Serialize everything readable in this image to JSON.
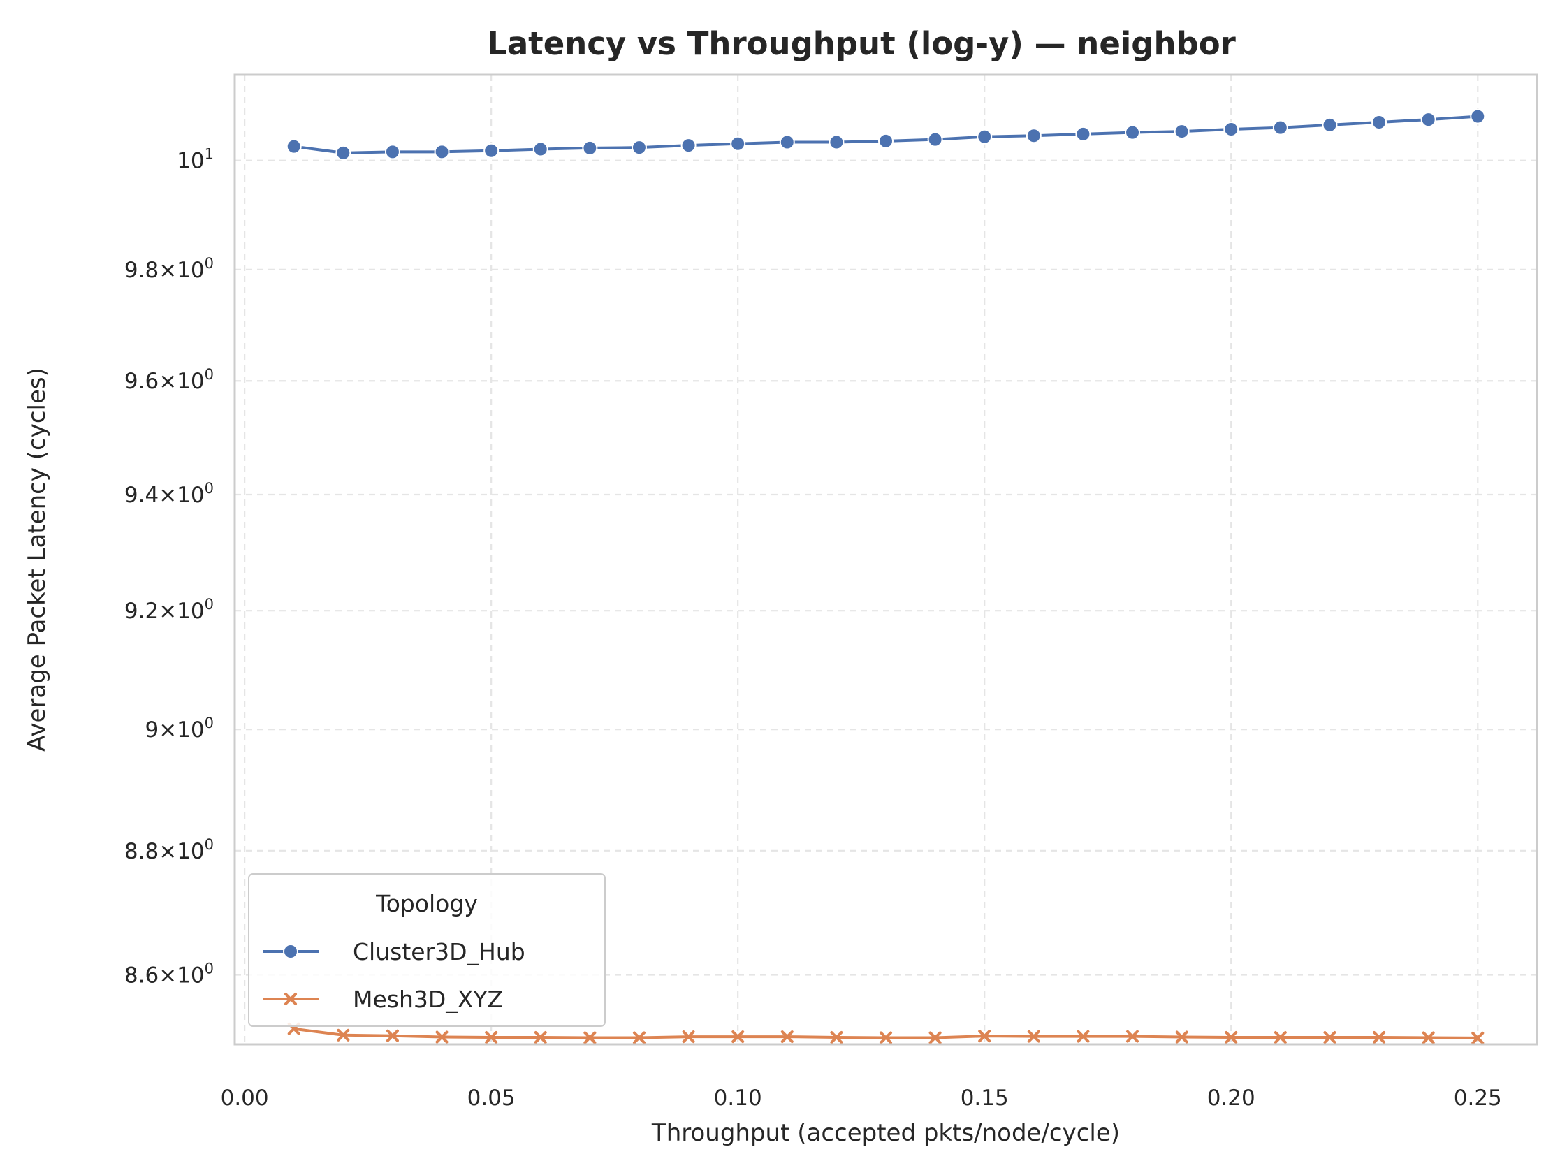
{
  "chart_data": {
    "type": "line",
    "title": "Latency vs Throughput (log-y) — neighbor",
    "xlabel": "Throughput (accepted pkts/node/cycle)",
    "ylabel": "Average Packet Latency (cycles)",
    "y_scale": "log",
    "xlim": [
      -0.002,
      0.262
    ],
    "ylim": [
      8.49,
      10.16
    ],
    "x_ticks": [
      {
        "value": 0.0,
        "label": "0.00"
      },
      {
        "value": 0.05,
        "label": "0.05"
      },
      {
        "value": 0.1,
        "label": "0.10"
      },
      {
        "value": 0.15,
        "label": "0.15"
      },
      {
        "value": 0.2,
        "label": "0.20"
      },
      {
        "value": 0.25,
        "label": "0.25"
      }
    ],
    "y_ticks": [
      {
        "value": 8.6,
        "mant": "8.6",
        "exp": "0"
      },
      {
        "value": 8.8,
        "mant": "8.8",
        "exp": "0"
      },
      {
        "value": 9.0,
        "mant": "9",
        "exp": "0"
      },
      {
        "value": 9.2,
        "mant": "9.2",
        "exp": "0"
      },
      {
        "value": 9.4,
        "mant": "9.4",
        "exp": "0"
      },
      {
        "value": 9.6,
        "mant": "9.6",
        "exp": "0"
      },
      {
        "value": 9.8,
        "mant": "9.8",
        "exp": "0"
      },
      {
        "value": 10.0,
        "mant": "10",
        "exp": "1",
        "is_base": true
      }
    ],
    "grid": true,
    "legend": {
      "title": "Topology",
      "position": "lower-left"
    },
    "x": [
      0.01,
      0.02,
      0.03,
      0.04,
      0.05,
      0.06,
      0.07,
      0.08,
      0.09,
      0.1,
      0.11,
      0.12,
      0.13,
      0.14,
      0.15,
      0.16,
      0.17,
      0.18,
      0.19,
      0.2,
      0.21,
      0.22,
      0.23,
      0.24,
      0.25
    ],
    "series": [
      {
        "name": "Cluster3D_Hub",
        "color": "#4c72b0",
        "marker": "circle",
        "values": [
          10.026,
          10.014,
          10.016,
          10.016,
          10.018,
          10.021,
          10.023,
          10.024,
          10.028,
          10.031,
          10.034,
          10.034,
          10.036,
          10.039,
          10.044,
          10.046,
          10.049,
          10.052,
          10.054,
          10.058,
          10.061,
          10.066,
          10.071,
          10.076,
          10.082
        ]
      },
      {
        "name": "Mesh3D_XYZ",
        "color": "#dd8452",
        "marker": "x",
        "values": [
          8.5145,
          8.5045,
          8.5035,
          8.5015,
          8.501,
          8.501,
          8.5005,
          8.5005,
          8.502,
          8.502,
          8.502,
          8.501,
          8.5005,
          8.5005,
          8.503,
          8.5025,
          8.5025,
          8.5025,
          8.5015,
          8.501,
          8.501,
          8.501,
          8.501,
          8.5005,
          8.5
        ]
      }
    ]
  }
}
